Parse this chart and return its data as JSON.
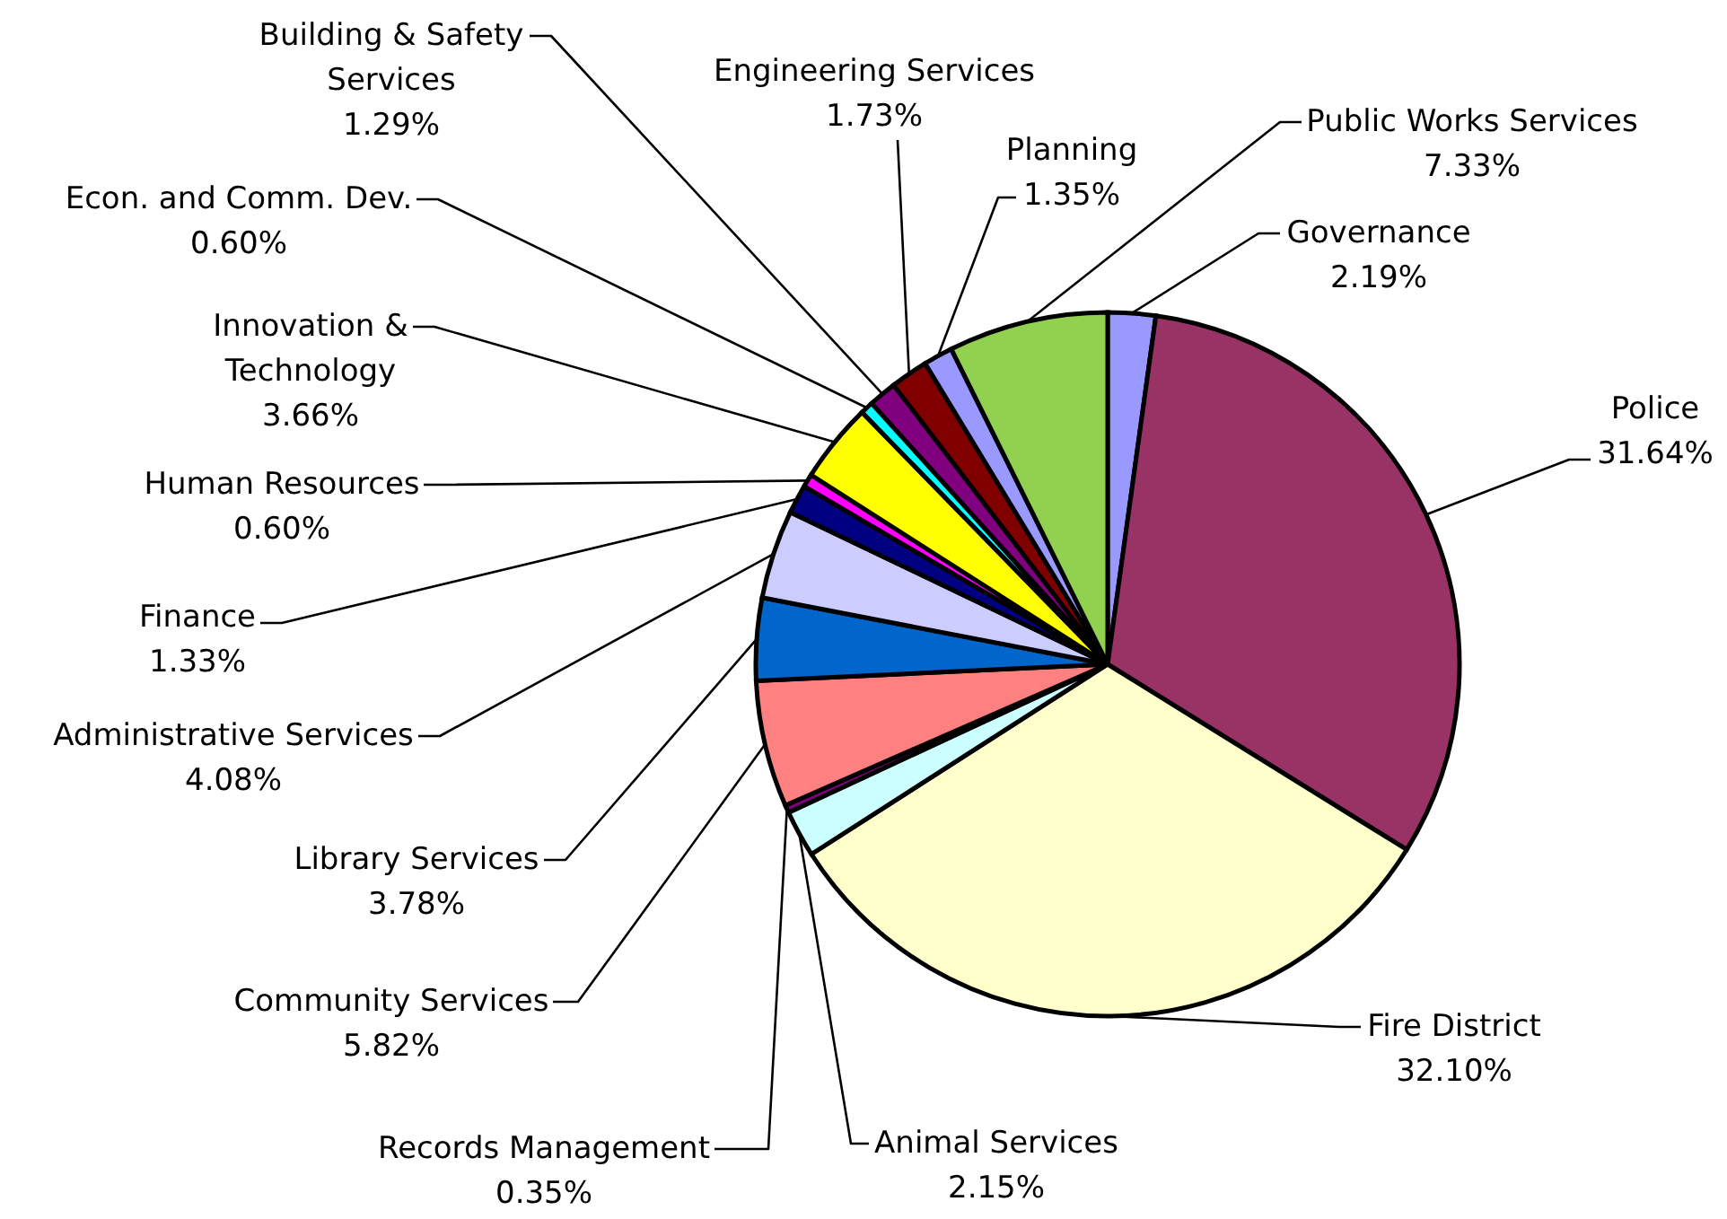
{
  "chart_data": {
    "type": "pie",
    "categories": [
      "Governance",
      "Police",
      "Fire District",
      "Animal Services",
      "Records Management",
      "Community Services",
      "Library Services",
      "Administrative Services",
      "Finance",
      "Human Resources",
      "Innovation & Technology",
      "Econ. and Comm. Dev.",
      "Building & Safety Services",
      "Engineering Services",
      "Planning",
      "Public Works Services"
    ],
    "values": [
      2.19,
      31.64,
      32.1,
      2.15,
      0.35,
      5.82,
      3.78,
      4.08,
      1.33,
      0.6,
      3.66,
      0.6,
      1.29,
      1.73,
      1.35,
      7.33
    ],
    "value_labels": [
      "2.19%",
      "31.64%",
      "32.10%",
      "2.15%",
      "0.35%",
      "5.82%",
      "3.78%",
      "4.08%",
      "1.33%",
      "0.60%",
      "3.66%",
      "0.60%",
      "1.29%",
      "1.73%",
      "1.35%",
      "7.33%"
    ],
    "colors": [
      "#9999ff",
      "#993366",
      "#ffffcc",
      "#ccffff",
      "#800080",
      "#ff8080",
      "#0066cc",
      "#ccccff",
      "#000080",
      "#ff00ff",
      "#ffff00",
      "#00ffff",
      "#800080",
      "#800000",
      "#9999ff",
      "#92d050"
    ]
  }
}
